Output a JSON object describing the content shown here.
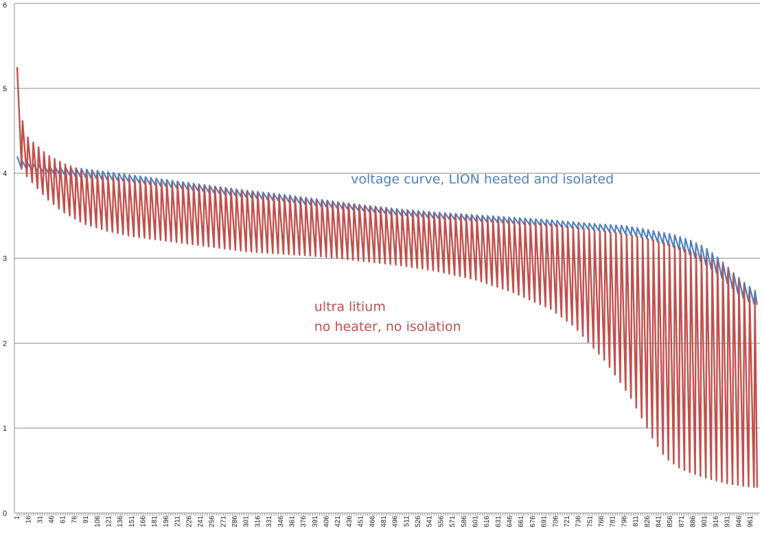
{
  "chart_data": {
    "type": "line",
    "title": "",
    "xlabel": "",
    "ylabel": "",
    "ylim": [
      0,
      6
    ],
    "yticks": [
      "0",
      "1",
      "2",
      "3",
      "4",
      "5",
      "6"
    ],
    "x_range": [
      1,
      970
    ],
    "x_tick_labels": [
      "1",
      "16",
      "31",
      "46",
      "61",
      "76",
      "91",
      "106",
      "121",
      "136",
      "151",
      "166",
      "181",
      "196",
      "211",
      "226",
      "241",
      "256",
      "271",
      "286",
      "301",
      "316",
      "331",
      "346",
      "361",
      "376",
      "391",
      "406",
      "421",
      "436",
      "451",
      "466",
      "481",
      "496",
      "511",
      "526",
      "541",
      "556",
      "571",
      "586",
      "601",
      "616",
      "631",
      "646",
      "661",
      "676",
      "691",
      "706",
      "721",
      "736",
      "751",
      "766",
      "781",
      "796",
      "811",
      "826",
      "841",
      "856",
      "871",
      "886",
      "901",
      "916",
      "931",
      "946",
      "961"
    ],
    "grid": true,
    "colors": {
      "blue": "#4f81bd",
      "red": "#c0504d",
      "grid": "#8c8c8c"
    },
    "series": [
      {
        "name": "voltage curve, LION heated and isolated",
        "color": "#4f81bd",
        "oscillation_period": 7,
        "upper_envelope": [
          [
            1,
            4.2
          ],
          [
            10,
            4.12
          ],
          [
            30,
            4.1
          ],
          [
            60,
            4.08
          ],
          [
            90,
            4.05
          ],
          [
            150,
            3.98
          ],
          [
            200,
            3.92
          ],
          [
            250,
            3.86
          ],
          [
            300,
            3.8
          ],
          [
            350,
            3.75
          ],
          [
            400,
            3.69
          ],
          [
            450,
            3.63
          ],
          [
            500,
            3.58
          ],
          [
            550,
            3.54
          ],
          [
            600,
            3.51
          ],
          [
            650,
            3.48
          ],
          [
            700,
            3.45
          ],
          [
            750,
            3.41
          ],
          [
            800,
            3.38
          ],
          [
            830,
            3.33
          ],
          [
            860,
            3.28
          ],
          [
            880,
            3.22
          ],
          [
            900,
            3.14
          ],
          [
            920,
            3.0
          ],
          [
            940,
            2.82
          ],
          [
            955,
            2.7
          ],
          [
            970,
            2.6
          ]
        ],
        "lower_envelope": [
          [
            1,
            4.05
          ],
          [
            10,
            4.05
          ],
          [
            30,
            4.02
          ],
          [
            60,
            3.99
          ],
          [
            90,
            3.95
          ],
          [
            150,
            3.9
          ],
          [
            200,
            3.84
          ],
          [
            250,
            3.78
          ],
          [
            300,
            3.72
          ],
          [
            350,
            3.67
          ],
          [
            400,
            3.61
          ],
          [
            450,
            3.56
          ],
          [
            500,
            3.51
          ],
          [
            550,
            3.47
          ],
          [
            600,
            3.44
          ],
          [
            650,
            3.41
          ],
          [
            700,
            3.38
          ],
          [
            750,
            3.34
          ],
          [
            800,
            3.28
          ],
          [
            830,
            3.22
          ],
          [
            860,
            3.13
          ],
          [
            880,
            3.05
          ],
          [
            900,
            2.94
          ],
          [
            920,
            2.8
          ],
          [
            940,
            2.62
          ],
          [
            955,
            2.5
          ],
          [
            970,
            2.45
          ]
        ]
      },
      {
        "name": "ultra litium no heater, no isolation",
        "color": "#c0504d",
        "oscillation_period": 7,
        "upper_envelope": [
          [
            1,
            5.25
          ],
          [
            3,
            5.1
          ],
          [
            6,
            4.7
          ],
          [
            12,
            4.45
          ],
          [
            20,
            4.38
          ],
          [
            40,
            4.22
          ],
          [
            60,
            4.12
          ],
          [
            90,
            4.02
          ],
          [
            120,
            3.96
          ],
          [
            150,
            3.93
          ],
          [
            200,
            3.88
          ],
          [
            250,
            3.84
          ],
          [
            300,
            3.78
          ],
          [
            350,
            3.72
          ],
          [
            400,
            3.67
          ],
          [
            450,
            3.62
          ],
          [
            500,
            3.56
          ],
          [
            550,
            3.52
          ],
          [
            600,
            3.48
          ],
          [
            650,
            3.44
          ],
          [
            700,
            3.4
          ],
          [
            750,
            3.34
          ],
          [
            800,
            3.28
          ],
          [
            840,
            3.2
          ],
          [
            870,
            3.12
          ],
          [
            900,
            3.02
          ],
          [
            930,
            2.9
          ],
          [
            960,
            2.6
          ],
          [
            970,
            2.5
          ]
        ],
        "lower_envelope": [
          [
            1,
            4.2
          ],
          [
            10,
            4.0
          ],
          [
            20,
            3.9
          ],
          [
            40,
            3.7
          ],
          [
            60,
            3.55
          ],
          [
            90,
            3.4
          ],
          [
            120,
            3.32
          ],
          [
            150,
            3.26
          ],
          [
            200,
            3.2
          ],
          [
            250,
            3.14
          ],
          [
            300,
            3.08
          ],
          [
            350,
            3.05
          ],
          [
            400,
            3.02
          ],
          [
            450,
            2.97
          ],
          [
            500,
            2.92
          ],
          [
            550,
            2.85
          ],
          [
            600,
            2.75
          ],
          [
            650,
            2.6
          ],
          [
            700,
            2.4
          ],
          [
            730,
            2.2
          ],
          [
            750,
            2.0
          ],
          [
            770,
            1.8
          ],
          [
            790,
            1.55
          ],
          [
            805,
            1.35
          ],
          [
            820,
            1.1
          ],
          [
            835,
            0.85
          ],
          [
            850,
            0.65
          ],
          [
            870,
            0.52
          ],
          [
            900,
            0.42
          ],
          [
            930,
            0.35
          ],
          [
            950,
            0.32
          ],
          [
            970,
            0.3
          ]
        ]
      }
    ],
    "annotations": [
      {
        "lines": [
          "voltage curve, LION heated and isolated"
        ],
        "color": "#4f81bd",
        "at": [
          438,
          3.88
        ]
      },
      {
        "lines": [
          "ultra litium",
          "no heater, no isolation"
        ],
        "color": "#c0504d",
        "at": [
          390,
          2.38
        ]
      }
    ]
  }
}
